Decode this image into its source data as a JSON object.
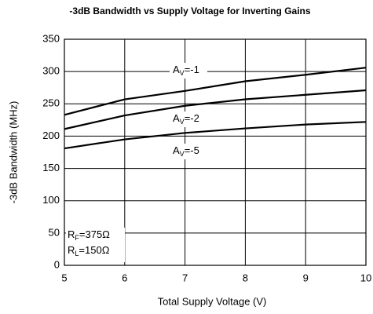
{
  "chart_data": {
    "type": "line",
    "title": "-3dB Bandwidth vs Supply Voltage for Inverting Gains",
    "x_label": "Total Supply Voltage (V)",
    "y_label": "-3dB Bandwidth (MHz)",
    "x": [
      5,
      6,
      7,
      8,
      9,
      10
    ],
    "series": [
      {
        "name": "AV=-1",
        "color": "#000000",
        "values": [
          233,
          257,
          270,
          285,
          295,
          306
        ]
      },
      {
        "name": "AV=-2",
        "color": "#000000",
        "values": [
          211,
          232,
          247,
          257,
          264,
          271
        ]
      },
      {
        "name": "AV=-5",
        "color": "#000000",
        "values": [
          181,
          195,
          205,
          212,
          218,
          222
        ]
      }
    ],
    "annotations": [
      "RF=375Ω",
      "RL=150Ω"
    ],
    "xlim": [
      5,
      10
    ],
    "xticks": [
      5,
      6,
      7,
      8,
      9,
      10
    ],
    "ylim": [
      0,
      350
    ],
    "yticks": [
      0,
      50,
      100,
      150,
      200,
      250,
      300,
      350
    ],
    "grid": true
  }
}
